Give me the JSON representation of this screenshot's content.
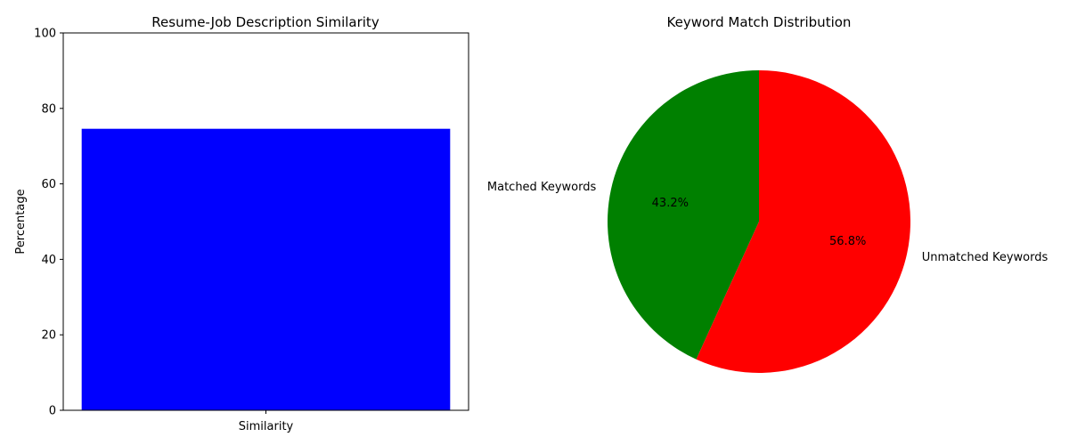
{
  "chart_data": [
    {
      "type": "bar",
      "title": "Resume-Job Description Similarity",
      "categories": [
        "Similarity"
      ],
      "values": [
        74.6
      ],
      "xlabel": "",
      "ylabel": "Percentage",
      "ylim": [
        0,
        100
      ],
      "yticks": [
        0,
        20,
        40,
        60,
        80,
        100
      ],
      "colors": [
        "#0000ff"
      ],
      "grid": false
    },
    {
      "type": "pie",
      "title": "Keyword Match Distribution",
      "labels": [
        "Matched Keywords",
        "Unmatched Keywords"
      ],
      "values": [
        43.2,
        56.8
      ],
      "pct_labels": [
        "43.2%",
        "56.8%"
      ],
      "colors": [
        "#008000",
        "#ff0000"
      ],
      "start_angle_deg": 90
    }
  ]
}
